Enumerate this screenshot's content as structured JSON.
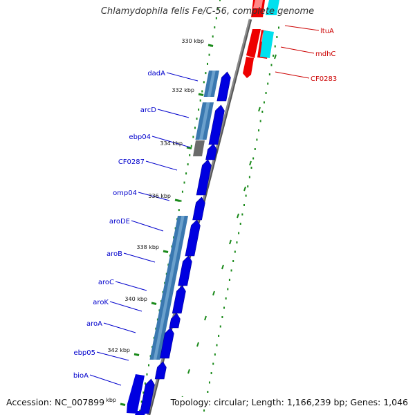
{
  "title": "Chlamydophila felis Fe/C-56, complete genome",
  "footer": {
    "accession": "Accession: NC_007899",
    "summary": "Topology: circular; Length: 1,166,239 bp; Genes: 1,046"
  },
  "colors": {
    "forward_gene": "#0000e0",
    "blast_hit": "#3a78b0",
    "gray_hit": "#6b6b6b",
    "red_gene": "#ee0000",
    "cyan_gene": "#00e0ee",
    "backbone": "#8a8a8a",
    "tick": "#1a8a1a",
    "label_blue": "#0000cc",
    "label_red": "#cc0000"
  },
  "tick_labels": [
    "330 kbp",
    "332 kbp",
    "334 kbp",
    "336 kbp",
    "338 kbp",
    "340 kbp",
    "342 kbp",
    "kbp"
  ],
  "left_labels": [
    "dadA",
    "arcD",
    "ebp04",
    "CF0287",
    "omp04",
    "aroDE",
    "aroB",
    "aroC",
    "aroK",
    "aroA",
    "ebp05",
    "bioA"
  ],
  "right_labels": [
    "ltuA",
    "mdhC",
    "CF0283"
  ]
}
